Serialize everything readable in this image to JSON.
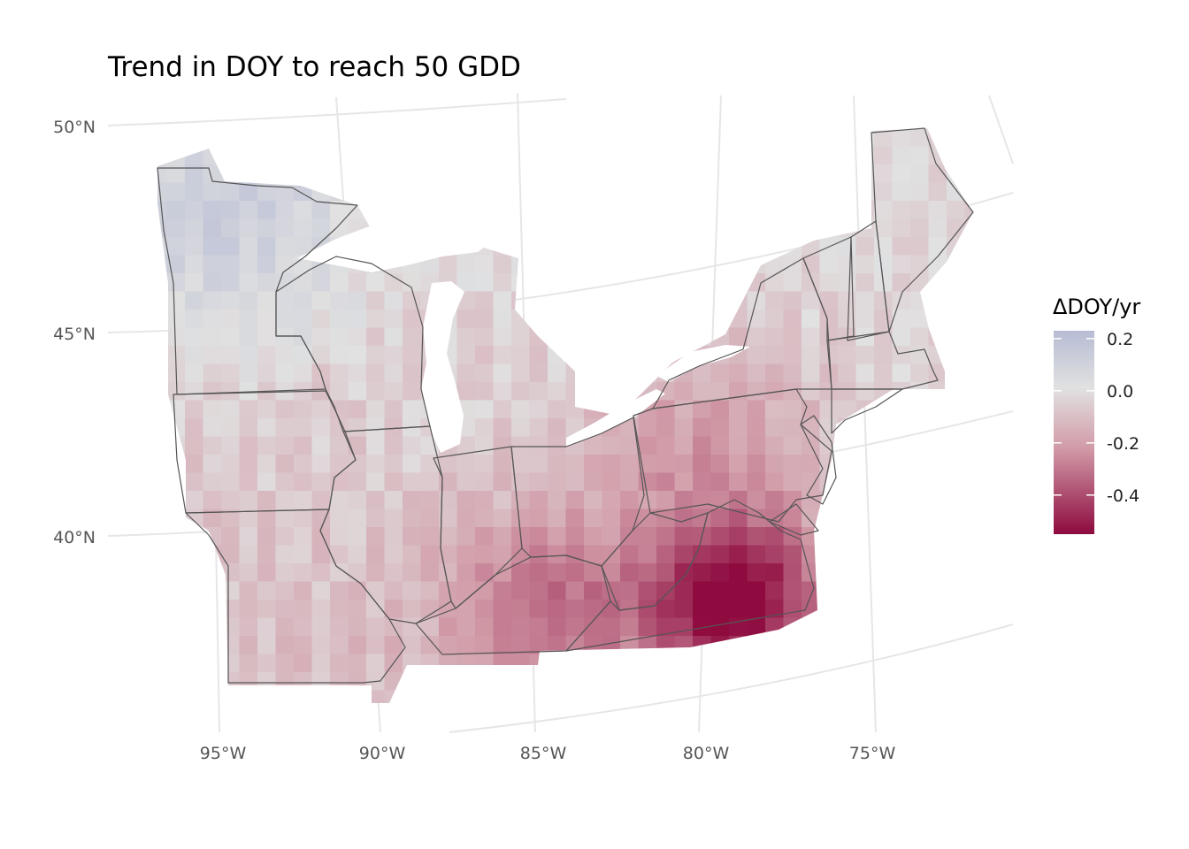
{
  "title": "Trend in DOY to reach 50 GDD",
  "axes": {
    "lat_labels": [
      "50°N",
      "45°N",
      "40°N"
    ],
    "lon_labels": [
      "95°W",
      "90°W",
      "85°W",
      "80°W",
      "75°W"
    ]
  },
  "legend": {
    "title": "ΔDOY/yr",
    "labels": [
      "0.2",
      "0.0",
      "-0.2",
      "-0.4"
    ],
    "values": [
      0.2,
      0.0,
      -0.2,
      -0.4
    ],
    "range": [
      -0.55,
      0.23
    ],
    "colors": {
      "high": "#b7bcd4",
      "mid": "#e1e1e1",
      "mid_low": "#d19aa7",
      "low": "#8e0a3f"
    }
  },
  "colors": {
    "grid": "#e6e6e6",
    "border": "#555555"
  }
}
